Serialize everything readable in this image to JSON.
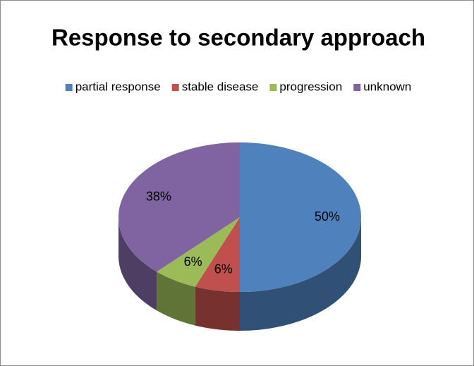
{
  "chart_data": {
    "type": "pie",
    "title": "Response to secondary approach",
    "categories": [
      "partial response",
      "stable disease",
      "progression",
      "unknown"
    ],
    "values": [
      50,
      6,
      6,
      38
    ],
    "value_labels": [
      "50%",
      "6%",
      "6%",
      "38%"
    ],
    "colors": [
      "#4f81bd",
      "#c0504d",
      "#9bbb59",
      "#8064a2"
    ],
    "legend": "top",
    "3d": true
  }
}
